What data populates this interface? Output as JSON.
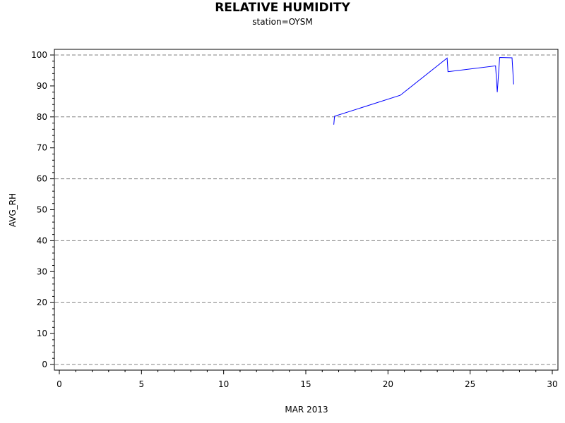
{
  "chart_data": {
    "type": "line",
    "title": "RELATIVE HUMIDITY",
    "subtitle": "station=OYSM",
    "xlabel": "MAR 2013",
    "ylabel": "AVG_RH",
    "xlim": [
      0,
      30
    ],
    "ylim": [
      0,
      100
    ],
    "x_ticks": [
      0,
      5,
      10,
      15,
      20,
      25,
      30
    ],
    "y_ticks": [
      0,
      10,
      20,
      30,
      40,
      50,
      60,
      70,
      80,
      90,
      100
    ],
    "grid": "horizontal dashed at 0, 20, 40, 60, 80, 100",
    "series": [
      {
        "color": "#0000ff",
        "x": [
          16.7,
          16.75,
          20.75,
          23.6,
          23.65,
          26.55,
          26.65,
          26.8,
          27.55,
          27.65
        ],
        "y": [
          77.5,
          80.2,
          87.0,
          99.0,
          94.6,
          96.5,
          88.0,
          99.2,
          99.1,
          90.5
        ]
      }
    ]
  }
}
